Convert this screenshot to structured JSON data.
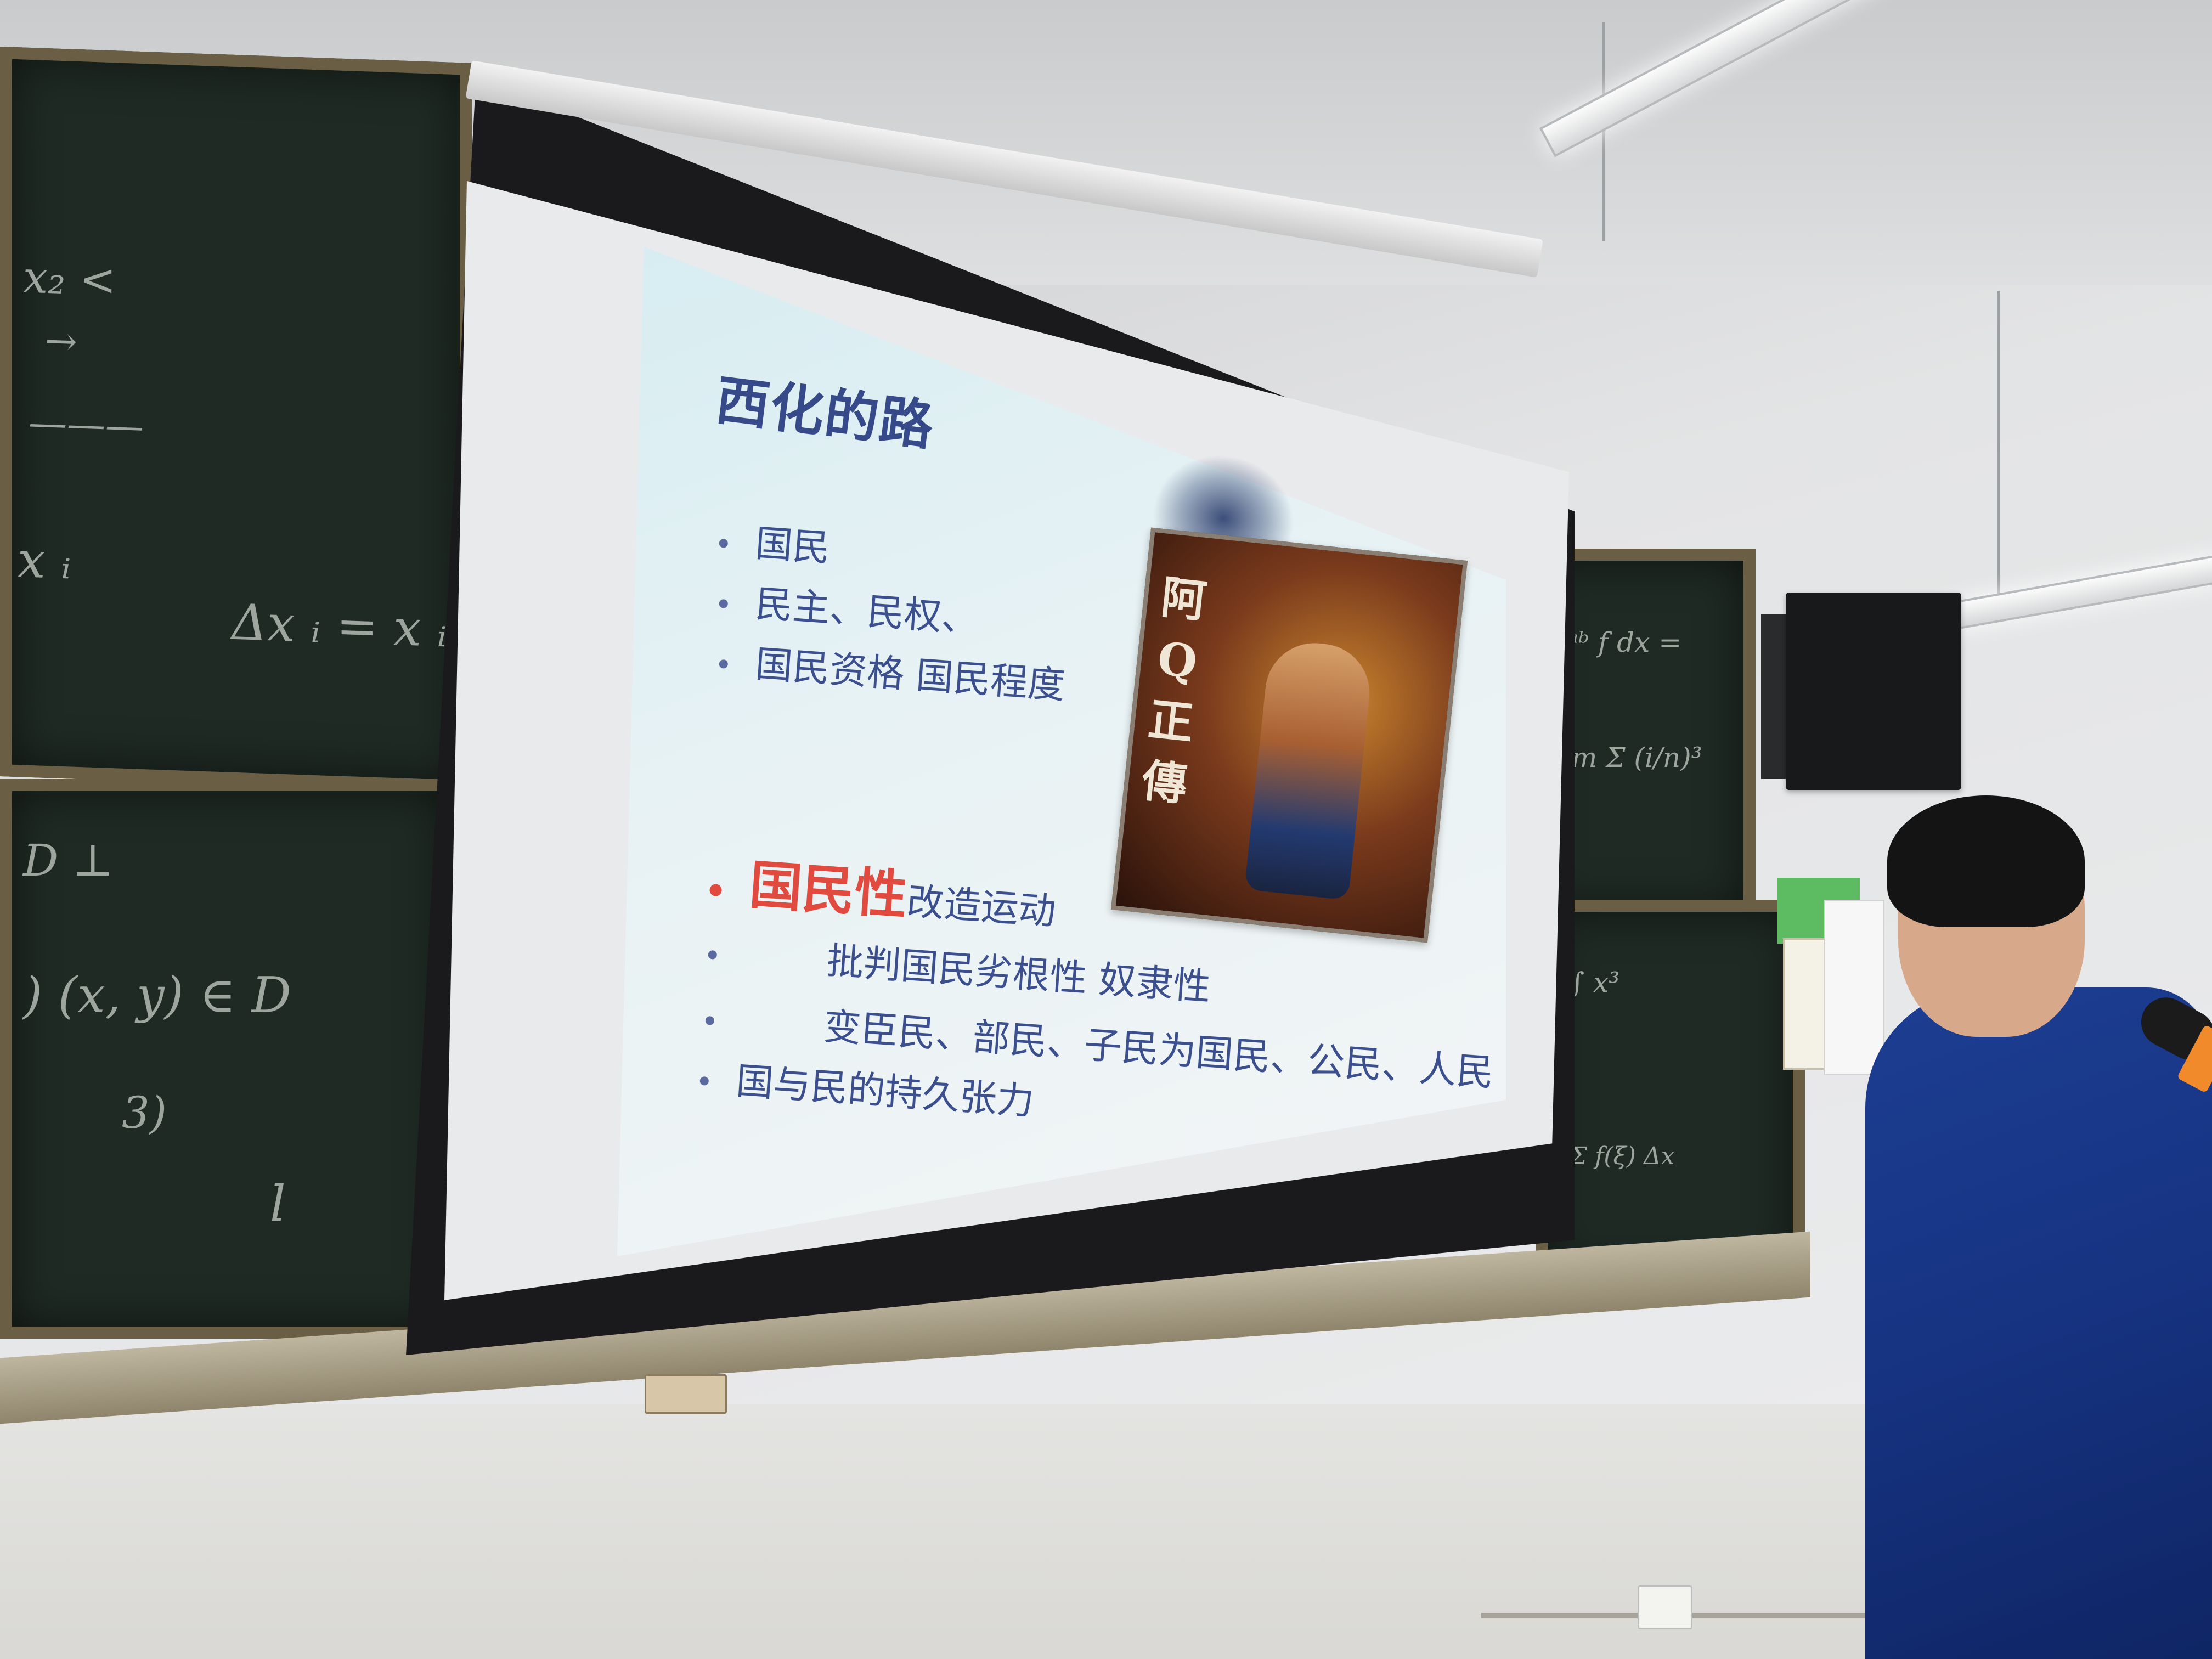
{
  "slide": {
    "title": "西化的路",
    "bullets": [
      "国民",
      "民主、民权、",
      "国民资格  国民程度"
    ],
    "highlight": {
      "red_part": "国民性",
      "rest": "改造运动"
    },
    "sub_bullets": [
      "批判国民劣根性  奴隶性",
      "变臣民、部民、子民为国民、公民、人民"
    ],
    "last_bullet": "国与民的持久张力",
    "picture_calligraphy": "阿Q正傳"
  },
  "colors": {
    "title": "#364a8a",
    "bullet_text": "#3b4f8e",
    "highlight_red": "#e04a3f",
    "speaker_shirt": "#1d3e93"
  }
}
